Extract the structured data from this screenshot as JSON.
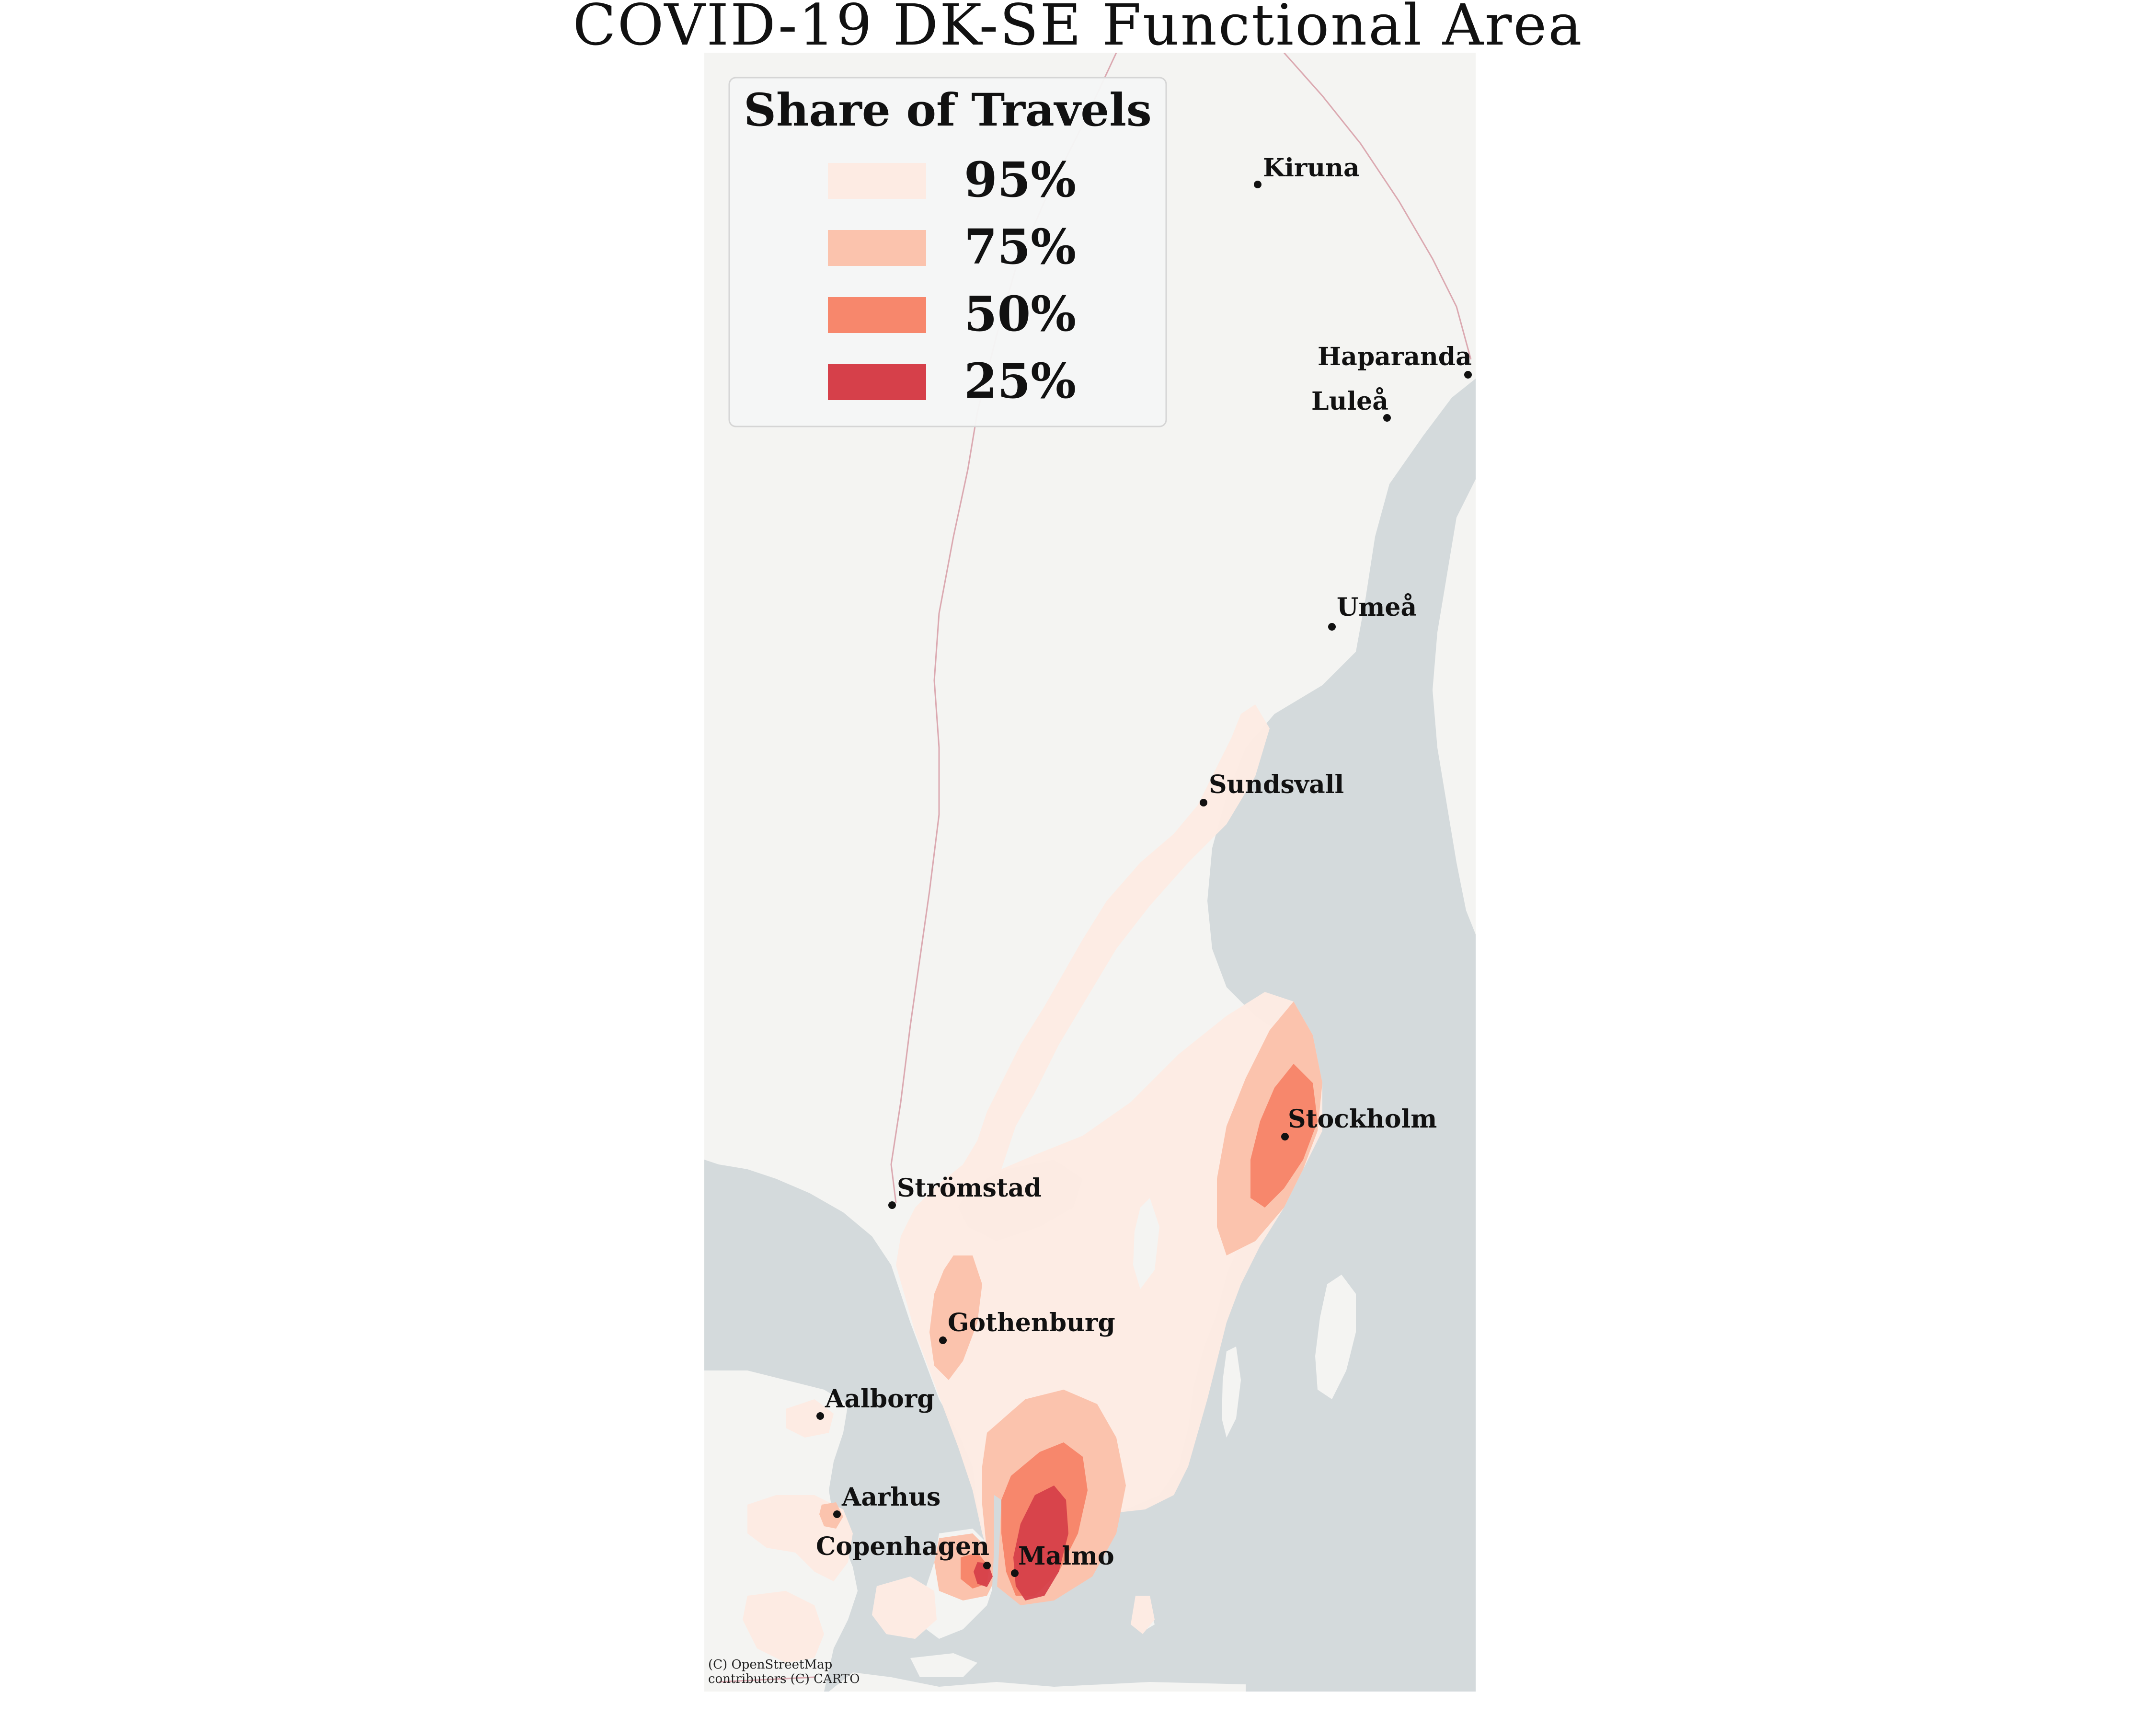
{
  "title": "COVID-19 DK-SE Functional Area",
  "legend": {
    "title": "Share of Travels",
    "items": [
      {
        "label": "95%",
        "color": "#fdebe3"
      },
      {
        "label": "75%",
        "color": "#fbc3ad"
      },
      {
        "label": "50%",
        "color": "#f7876c"
      },
      {
        "label": "25%",
        "color": "#d6404a"
      }
    ]
  },
  "cities": [
    {
      "name": "Kiruna"
    },
    {
      "name": "Haparanda"
    },
    {
      "name": "Luleå"
    },
    {
      "name": "Umeå"
    },
    {
      "name": "Sundsvall"
    },
    {
      "name": "Stockholm"
    },
    {
      "name": "Strömstad"
    },
    {
      "name": "Gothenburg"
    },
    {
      "name": "Aalborg"
    },
    {
      "name": "Aarhus"
    },
    {
      "name": "Copenhagen"
    },
    {
      "name": "Malmo"
    }
  ],
  "attribution": [
    "(C) OpenStreetMap",
    "contributors (C) CARTO"
  ],
  "colors": {
    "water": "#d4dadc",
    "land": "#f4f4f2",
    "border": "#d7a6ae"
  }
}
